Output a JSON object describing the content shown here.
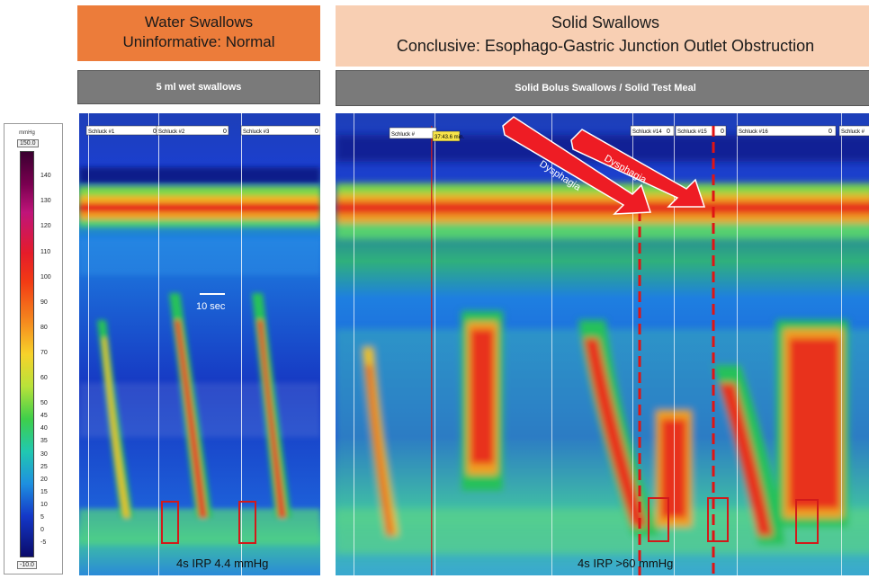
{
  "left": {
    "header_line1": "Water Swallows",
    "header_line2": "Uninformative: Normal",
    "bar_label": "5 ml wet swallows",
    "swallow_labels": [
      "Schluck #1",
      "Schluck #2",
      "Schluck #3"
    ],
    "swallow_counts": [
      "0",
      "0",
      "0"
    ],
    "time_scale_label": "10 sec",
    "irp_label": "4s IRP 4.4 mmHg"
  },
  "right": {
    "header_line1": "Solid Swallows",
    "header_line2": "Conclusive: Esophago-Gastric Junction Outlet Obstruction",
    "bar_label": "Solid Bolus Swallows / Solid Test Meal",
    "swallow_labels": [
      "Schluck #",
      "Schluck #14",
      "Schluck #15",
      "Schluck #16",
      "Schluck #"
    ],
    "swallow_counts": [
      "0",
      "0",
      "0"
    ],
    "time_marker": "37:43.6 min.",
    "arrow_label_1": "Dysphagia",
    "arrow_label_2": "Dysphagia",
    "irp_label": "4s IRP >60 mmHg"
  },
  "scale": {
    "unit": "mmHg",
    "max_label": "150.0",
    "min_label": "-10.0",
    "ticks": [
      "140",
      "130",
      "120",
      "110",
      "100",
      "90",
      "80",
      "70",
      "60",
      "50",
      "45",
      "40",
      "35",
      "30",
      "25",
      "20",
      "15",
      "10",
      "5",
      "0",
      "-5"
    ],
    "tick_values": [
      140,
      130,
      120,
      110,
      100,
      90,
      80,
      70,
      60,
      50,
      45,
      40,
      35,
      30,
      25,
      20,
      15,
      10,
      5,
      0,
      -5
    ]
  },
  "colors": {
    "header_orange": "#ec7c3a",
    "header_peach": "#f8cfb3",
    "bar_gray": "#7a7a7a",
    "arrow_red": "#ee1c24",
    "marker_red": "#d21a1a"
  }
}
